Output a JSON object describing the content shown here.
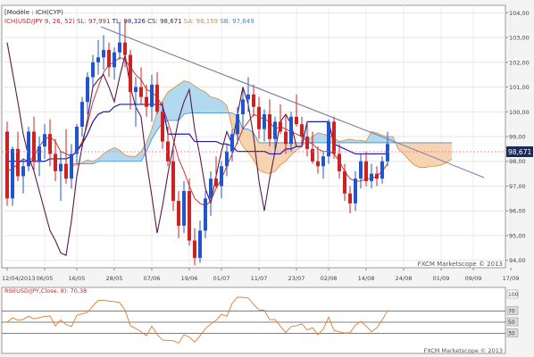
{
  "header": {
    "module": "[Modèle : ICH(CYP)",
    "series_label": "ICH(USD/JPY 9, 26, 52)",
    "readouts": [
      {
        "text": "SL: 97,991",
        "color": "#cc2222"
      },
      {
        "text": "TL: 98,326",
        "color": "#1a1aa6"
      },
      {
        "text": "CS: 98,671",
        "color": "#333333"
      },
      {
        "text": "SA: 98,159",
        "color": "#e08a30"
      },
      {
        "text": "SB: 97,649",
        "color": "#3a8fd0"
      }
    ]
  },
  "price_axis": {
    "ticks": [
      "104,00",
      "103,00",
      "102,00",
      "101,00",
      "100,00",
      "99,00",
      "98,00",
      "97,00",
      "96,00",
      "95,00",
      "94,00"
    ],
    "current": "98,671"
  },
  "date_axis": {
    "labels": [
      "12/04/2013",
      "06/05",
      "16/05",
      "28/05",
      "07/06",
      "19/06",
      "01/07",
      "11/07",
      "23/07",
      "02/08",
      "14/08",
      "24/08",
      "01/09",
      "09/09",
      "17/09"
    ]
  },
  "watermark": "FXCM Marketscope © 2013",
  "indicator": {
    "label": "RSI(USD/JPY,Close, 8): 70,38",
    "ticks": [
      "100",
      "70",
      "50",
      "30"
    ],
    "watermark": "FXCM Marketscope © 2013"
  },
  "colors": {
    "up": "#2255cc",
    "down": "#cc2222",
    "tenkan": "#cc2222",
    "kijun": "#1a1aa6",
    "chikou": "#5a1a4a",
    "cloud_bull": "#a9d6ee",
    "cloud_bear": "#f6cfa8",
    "trendline": "#8080a8",
    "rsi": "#e07a30"
  },
  "chart_data": {
    "type": "candlestick",
    "y_range": [
      93.7,
      104.3
    ],
    "candles": [
      {
        "o": 99.2,
        "h": 99.6,
        "l": 96.2,
        "c": 96.5
      },
      {
        "o": 96.5,
        "h": 98.6,
        "l": 96.2,
        "c": 98.5
      },
      {
        "o": 98.5,
        "h": 99.2,
        "l": 97.2,
        "c": 97.4
      },
      {
        "o": 97.4,
        "h": 98.1,
        "l": 96.7,
        "c": 97.8
      },
      {
        "o": 97.8,
        "h": 99.4,
        "l": 97.6,
        "c": 99.2
      },
      {
        "o": 99.2,
        "h": 99.8,
        "l": 97.6,
        "c": 98.0
      },
      {
        "o": 98.0,
        "h": 99.0,
        "l": 97.4,
        "c": 98.6
      },
      {
        "o": 98.6,
        "h": 99.5,
        "l": 98.1,
        "c": 99.1
      },
      {
        "o": 99.1,
        "h": 99.7,
        "l": 97.8,
        "c": 98.3
      },
      {
        "o": 98.3,
        "h": 98.9,
        "l": 97.2,
        "c": 97.6
      },
      {
        "o": 97.6,
        "h": 98.4,
        "l": 96.4,
        "c": 97.9
      },
      {
        "o": 97.9,
        "h": 99.3,
        "l": 97.1,
        "c": 97.3
      },
      {
        "o": 97.3,
        "h": 98.7,
        "l": 96.9,
        "c": 98.3
      },
      {
        "o": 98.3,
        "h": 99.5,
        "l": 97.9,
        "c": 99.4
      },
      {
        "o": 99.4,
        "h": 100.6,
        "l": 99.0,
        "c": 100.4
      },
      {
        "o": 100.4,
        "h": 101.6,
        "l": 99.9,
        "c": 101.4
      },
      {
        "o": 101.4,
        "h": 102.3,
        "l": 101.0,
        "c": 102.0
      },
      {
        "o": 102.0,
        "h": 102.9,
        "l": 101.5,
        "c": 102.2
      },
      {
        "o": 102.2,
        "h": 103.1,
        "l": 101.7,
        "c": 102.5
      },
      {
        "o": 102.5,
        "h": 102.8,
        "l": 101.4,
        "c": 101.8
      },
      {
        "o": 101.8,
        "h": 102.6,
        "l": 101.3,
        "c": 102.4
      },
      {
        "o": 102.4,
        "h": 103.6,
        "l": 102.1,
        "c": 102.8
      },
      {
        "o": 102.8,
        "h": 103.7,
        "l": 101.8,
        "c": 102.3
      },
      {
        "o": 102.3,
        "h": 102.5,
        "l": 100.1,
        "c": 100.8
      },
      {
        "o": 100.8,
        "h": 101.4,
        "l": 99.4,
        "c": 101.0
      },
      {
        "o": 101.0,
        "h": 101.8,
        "l": 100.3,
        "c": 100.6
      },
      {
        "o": 100.6,
        "h": 101.1,
        "l": 99.8,
        "c": 100.2
      },
      {
        "o": 100.2,
        "h": 101.5,
        "l": 99.6,
        "c": 101.1
      },
      {
        "o": 101.1,
        "h": 101.6,
        "l": 99.9,
        "c": 100.0
      },
      {
        "o": 100.0,
        "h": 100.4,
        "l": 98.5,
        "c": 98.8
      },
      {
        "o": 98.8,
        "h": 99.4,
        "l": 97.8,
        "c": 98.0
      },
      {
        "o": 98.0,
        "h": 98.5,
        "l": 96.0,
        "c": 96.4
      },
      {
        "o": 96.4,
        "h": 96.8,
        "l": 94.9,
        "c": 95.4
      },
      {
        "o": 95.4,
        "h": 97.2,
        "l": 95.1,
        "c": 96.8
      },
      {
        "o": 96.8,
        "h": 97.3,
        "l": 94.6,
        "c": 94.8
      },
      {
        "o": 94.8,
        "h": 95.3,
        "l": 93.8,
        "c": 94.1
      },
      {
        "o": 94.1,
        "h": 95.6,
        "l": 93.9,
        "c": 95.2
      },
      {
        "o": 95.2,
        "h": 96.8,
        "l": 94.9,
        "c": 96.5
      },
      {
        "o": 96.5,
        "h": 97.6,
        "l": 95.8,
        "c": 97.3
      },
      {
        "o": 97.3,
        "h": 98.2,
        "l": 96.9,
        "c": 97.0
      },
      {
        "o": 97.0,
        "h": 98.0,
        "l": 96.5,
        "c": 97.8
      },
      {
        "o": 97.8,
        "h": 98.7,
        "l": 97.4,
        "c": 98.4
      },
      {
        "o": 98.4,
        "h": 99.3,
        "l": 98.0,
        "c": 99.1
      },
      {
        "o": 99.1,
        "h": 100.2,
        "l": 98.7,
        "c": 99.9
      },
      {
        "o": 99.9,
        "h": 100.9,
        "l": 99.3,
        "c": 100.5
      },
      {
        "o": 100.5,
        "h": 101.4,
        "l": 100.0,
        "c": 100.7
      },
      {
        "o": 100.7,
        "h": 101.1,
        "l": 99.8,
        "c": 100.2
      },
      {
        "o": 100.2,
        "h": 100.6,
        "l": 98.9,
        "c": 99.3
      },
      {
        "o": 99.3,
        "h": 100.1,
        "l": 98.8,
        "c": 99.9
      },
      {
        "o": 99.9,
        "h": 100.5,
        "l": 98.6,
        "c": 98.9
      },
      {
        "o": 98.9,
        "h": 99.8,
        "l": 98.4,
        "c": 99.6
      },
      {
        "o": 99.6,
        "h": 100.3,
        "l": 99.1,
        "c": 99.2
      },
      {
        "o": 99.2,
        "h": 99.9,
        "l": 98.3,
        "c": 98.7
      },
      {
        "o": 98.7,
        "h": 100.0,
        "l": 98.4,
        "c": 99.8
      },
      {
        "o": 99.8,
        "h": 100.7,
        "l": 99.4,
        "c": 99.5
      },
      {
        "o": 99.5,
        "h": 99.8,
        "l": 98.6,
        "c": 99.0
      },
      {
        "o": 99.0,
        "h": 99.6,
        "l": 98.2,
        "c": 98.5
      },
      {
        "o": 98.5,
        "h": 99.2,
        "l": 97.9,
        "c": 98.0
      },
      {
        "o": 98.0,
        "h": 98.6,
        "l": 97.5,
        "c": 97.8
      },
      {
        "o": 97.8,
        "h": 98.4,
        "l": 97.3,
        "c": 98.2
      },
      {
        "o": 98.2,
        "h": 99.7,
        "l": 97.9,
        "c": 99.6
      },
      {
        "o": 99.6,
        "h": 99.8,
        "l": 98.1,
        "c": 98.3
      },
      {
        "o": 98.3,
        "h": 98.7,
        "l": 97.3,
        "c": 97.6
      },
      {
        "o": 97.6,
        "h": 97.9,
        "l": 96.4,
        "c": 96.7
      },
      {
        "o": 96.7,
        "h": 97.0,
        "l": 95.9,
        "c": 96.3
      },
      {
        "o": 96.3,
        "h": 97.6,
        "l": 96.0,
        "c": 97.3
      },
      {
        "o": 97.3,
        "h": 98.3,
        "l": 96.9,
        "c": 98.0
      },
      {
        "o": 98.0,
        "h": 98.4,
        "l": 97.0,
        "c": 97.2
      },
      {
        "o": 97.2,
        "h": 97.9,
        "l": 96.9,
        "c": 97.5
      },
      {
        "o": 97.5,
        "h": 97.8,
        "l": 97.0,
        "c": 97.3
      },
      {
        "o": 97.3,
        "h": 98.2,
        "l": 97.1,
        "c": 98.0
      },
      {
        "o": 98.0,
        "h": 99.2,
        "l": 97.8,
        "c": 98.7
      }
    ],
    "tenkan": [
      97.6,
      97.7,
      97.9,
      98.1,
      98.0,
      98.2,
      98.6,
      98.9,
      99.0,
      98.8,
      98.4,
      98.3,
      98.2,
      98.4,
      98.8,
      99.5,
      100.4,
      101.0,
      101.6,
      101.9,
      102.0,
      102.2,
      102.1,
      101.8,
      101.5,
      101.3,
      100.9,
      100.8,
      100.6,
      100.2,
      99.6,
      98.9,
      98.1,
      97.6,
      97.0,
      96.5,
      96.3,
      96.2,
      96.4,
      96.9,
      97.3,
      97.8,
      98.3,
      98.8,
      99.3,
      99.6,
      99.9,
      99.8,
      99.7,
      99.6,
      99.3,
      99.4,
      99.3,
      99.2,
      99.1,
      99.0,
      98.8,
      98.7,
      98.5,
      98.4,
      98.4,
      98.3,
      98.0,
      97.6,
      97.3,
      97.2,
      97.2,
      97.3,
      97.3,
      97.4,
      97.6,
      97.9
    ],
    "kijun": [
      98.0,
      98.0,
      98.0,
      98.0,
      98.0,
      98.0,
      98.0,
      98.0,
      98.1,
      98.1,
      98.1,
      98.1,
      98.2,
      98.4,
      98.7,
      99.1,
      99.6,
      99.9,
      100.0,
      100.0,
      100.2,
      100.3,
      100.3,
      100.3,
      100.3,
      100.3,
      100.3,
      100.3,
      100.3,
      100.3,
      99.1,
      99.1,
      99.1,
      99.1,
      99.1,
      98.8,
      98.8,
      98.8,
      98.8,
      98.8,
      98.7,
      98.7,
      98.6,
      98.4,
      98.4,
      98.4,
      98.4,
      98.4,
      98.4,
      98.3,
      98.3,
      98.3,
      98.5,
      98.5,
      98.6,
      98.6,
      99.6,
      99.6,
      99.6,
      99.6,
      99.6,
      98.7,
      98.6,
      98.5,
      98.4,
      98.3,
      98.3,
      98.3,
      98.3,
      98.3,
      98.3,
      98.3
    ],
    "chikou": [
      102.8,
      101.6,
      100.4,
      99.1,
      98.2,
      97.6,
      96.8,
      96.0,
      95.2,
      94.8,
      94.3,
      94.2,
      95.6,
      97.4,
      98.6,
      99.7,
      101.0,
      101.3,
      101.5,
      101.0,
      100.4,
      101.4,
      102.3,
      101.0,
      100.2,
      99.8,
      98.0,
      96.6,
      95.1,
      96.2,
      97.5,
      98.6,
      99.7,
      100.4,
      100.9,
      99.3,
      98.2,
      96.9,
      96.3,
      97.4,
      98.4,
      99.2,
      98.7,
      99.9,
      101.0,
      100.3,
      99.0,
      97.2,
      96.0,
      97.3,
      98.4,
      99.6,
      99.9,
      99.5,
      98.6
    ]
  }
}
